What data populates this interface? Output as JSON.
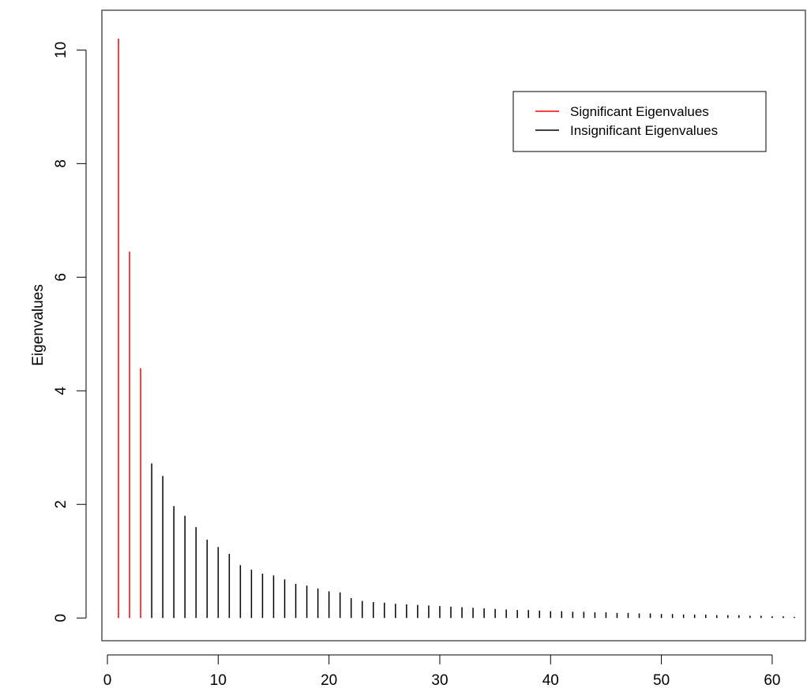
{
  "chart_data": {
    "type": "bar",
    "title": "",
    "xlabel": "",
    "ylabel": "Eigenvalues",
    "xlim": [
      -0.5,
      63
    ],
    "ylim": [
      -0.4,
      10.7
    ],
    "xticks": [
      0,
      10,
      20,
      30,
      40,
      50,
      60
    ],
    "yticks": [
      0,
      2,
      4,
      6,
      8,
      10
    ],
    "grid": false,
    "legend_position": "top-right",
    "x": [
      1,
      2,
      3,
      4,
      5,
      6,
      7,
      8,
      9,
      10,
      11,
      12,
      13,
      14,
      15,
      16,
      17,
      18,
      19,
      20,
      21,
      22,
      23,
      24,
      25,
      26,
      27,
      28,
      29,
      30,
      31,
      32,
      33,
      34,
      35,
      36,
      37,
      38,
      39,
      40,
      41,
      42,
      43,
      44,
      45,
      46,
      47,
      48,
      49,
      50,
      51,
      52,
      53,
      54,
      55,
      56,
      57,
      58,
      59,
      60,
      61,
      62
    ],
    "series": [
      {
        "name": "Significant Eigenvalues",
        "color": "#ff0000",
        "x": [
          1,
          2,
          3
        ],
        "values": [
          10.2,
          6.45,
          4.4
        ]
      },
      {
        "name": "Insignificant Eigenvalues",
        "color": "#000000",
        "x": [
          4,
          5,
          6,
          7,
          8,
          9,
          10,
          11,
          12,
          13,
          14,
          15,
          16,
          17,
          18,
          19,
          20,
          21,
          22,
          23,
          24,
          25,
          26,
          27,
          28,
          29,
          30,
          31,
          32,
          33,
          34,
          35,
          36,
          37,
          38,
          39,
          40,
          41,
          42,
          43,
          44,
          45,
          46,
          47,
          48,
          49,
          50,
          51,
          52,
          53,
          54,
          55,
          56,
          57,
          58,
          59,
          60,
          61,
          62
        ],
        "values": [
          2.72,
          2.5,
          1.97,
          1.8,
          1.6,
          1.38,
          1.25,
          1.13,
          0.93,
          0.85,
          0.78,
          0.75,
          0.68,
          0.6,
          0.57,
          0.52,
          0.47,
          0.45,
          0.35,
          0.3,
          0.28,
          0.27,
          0.25,
          0.24,
          0.23,
          0.22,
          0.21,
          0.2,
          0.19,
          0.18,
          0.17,
          0.16,
          0.15,
          0.14,
          0.14,
          0.13,
          0.12,
          0.12,
          0.11,
          0.11,
          0.1,
          0.1,
          0.09,
          0.09,
          0.08,
          0.08,
          0.07,
          0.07,
          0.06,
          0.06,
          0.06,
          0.05,
          0.05,
          0.05,
          0.04,
          0.04,
          0.03,
          0.03,
          0.02
        ]
      }
    ]
  }
}
